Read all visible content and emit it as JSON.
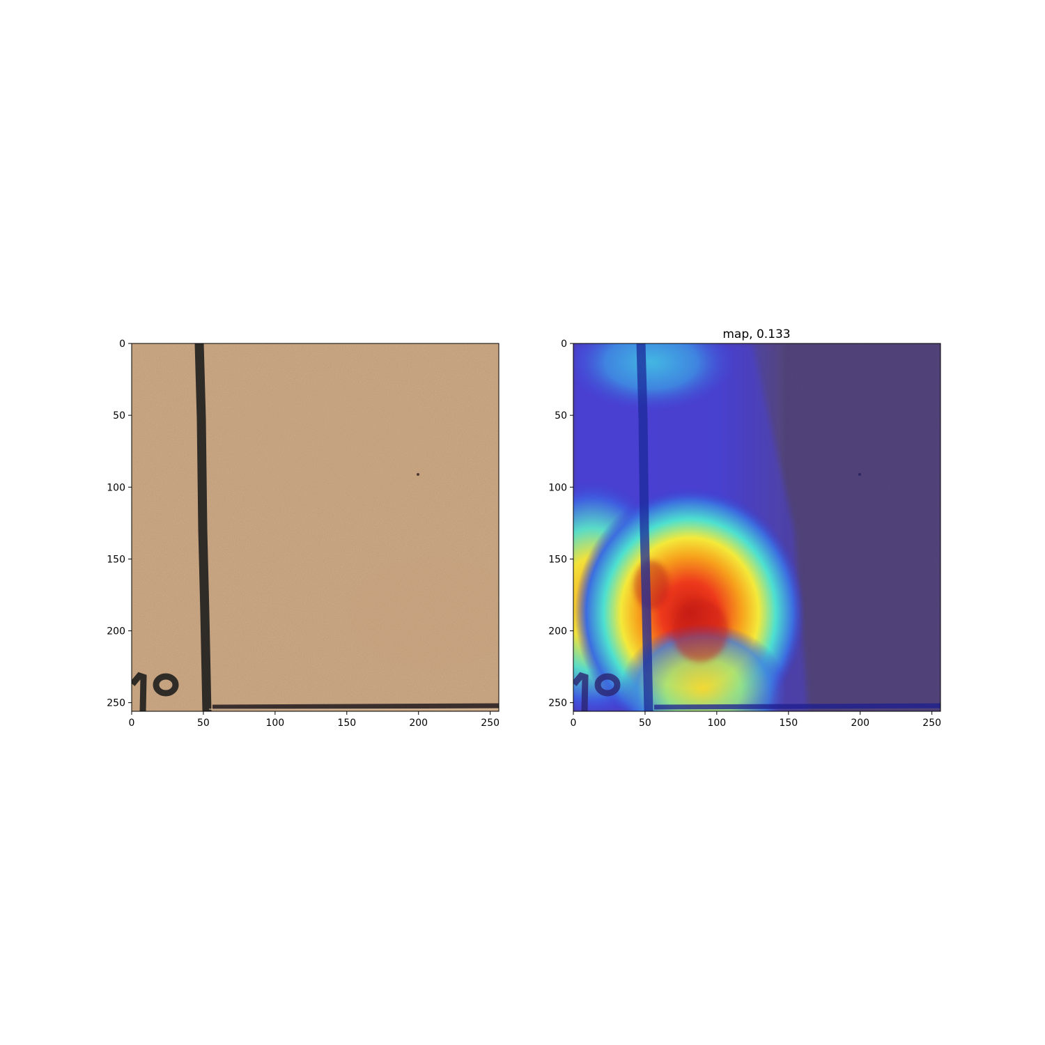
{
  "chart_data": [
    {
      "type": "heatmap",
      "title": "",
      "xlabel": "",
      "ylabel": "",
      "xlim": [
        0,
        256
      ],
      "ylim": [
        256,
        0
      ],
      "xticks": [
        0,
        50,
        100,
        150,
        200,
        250
      ],
      "yticks": [
        0,
        50,
        100,
        150,
        200,
        250
      ],
      "grid": false,
      "image": "scanned document patch: tan paper with dark vertical ruled line near x=50 and horizontal ruled line near y=252; partial printed characters '10' at bottom-left",
      "colors": {
        "paper": "#d2ad88",
        "ink": "#2f2b27"
      }
    },
    {
      "type": "heatmap",
      "title": "map, 0.133",
      "xlabel": "",
      "ylabel": "",
      "xlim": [
        0,
        256
      ],
      "ylim": [
        256,
        0
      ],
      "xticks": [
        0,
        50,
        100,
        150,
        200,
        250
      ],
      "yticks": [
        0,
        50,
        100,
        150,
        200,
        250
      ],
      "grid": false,
      "colormap": "jet",
      "overlay": "heatmap overlaid on the same document patch",
      "hotspots": [
        {
          "x": 60,
          "y": 180,
          "intensity": 1.0
        },
        {
          "x": 90,
          "y": 200,
          "intensity": 0.95
        },
        {
          "x": 20,
          "y": 175,
          "intensity": 0.6
        },
        {
          "x": 95,
          "y": 245,
          "intensity": 0.6
        },
        {
          "x": 55,
          "y": 12,
          "intensity": 0.35
        }
      ],
      "background_color": "#55467f"
    }
  ]
}
